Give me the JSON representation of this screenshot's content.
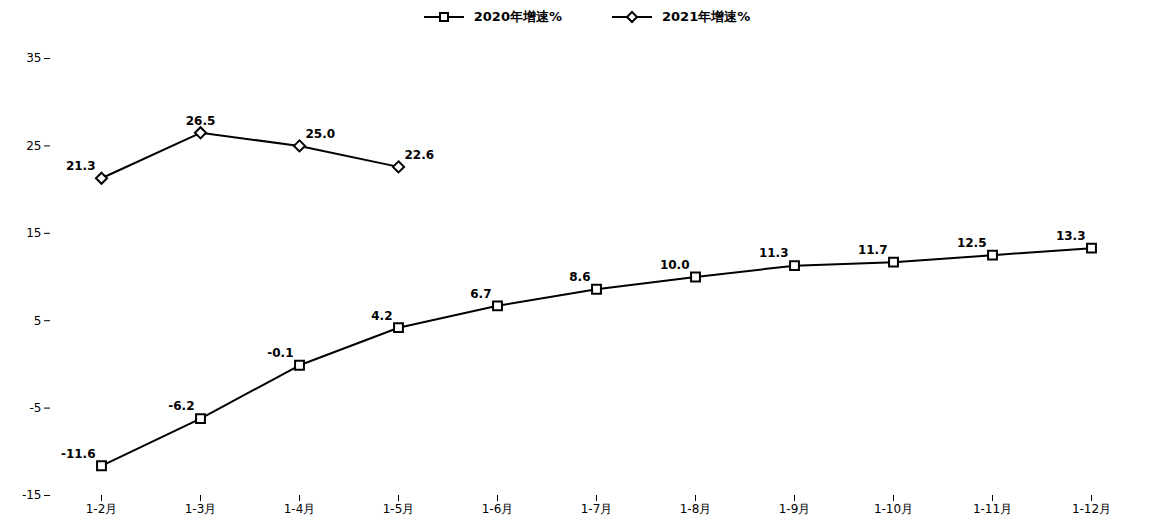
{
  "chart_data": {
    "type": "line",
    "categories": [
      "1-2月",
      "1-3月",
      "1-4月",
      "1-5月",
      "1-6月",
      "1-7月",
      "1-8月",
      "1-9月",
      "1-10月",
      "1-11月",
      "1-12月"
    ],
    "series": [
      {
        "name": "2020年增速%",
        "color": "#000000",
        "marker": "square",
        "values": [
          -11.6,
          -6.2,
          -0.1,
          4.2,
          6.7,
          8.6,
          10.0,
          11.3,
          11.7,
          12.5,
          13.3
        ],
        "value_labels": [
          "-11.6",
          "-6.2",
          "-0.1",
          "4.2",
          "6.7",
          "8.6",
          "10.0",
          "11.3",
          "11.7",
          "12.5",
          "13.3"
        ]
      },
      {
        "name": "2021年增速%",
        "color": "#000000",
        "marker": "diamond",
        "values": [
          21.3,
          26.5,
          25.0,
          22.6,
          null,
          null,
          null,
          null,
          null,
          null,
          null
        ],
        "value_labels": [
          "21.3",
          "26.5",
          "25.0",
          "22.6",
          null,
          null,
          null,
          null,
          null,
          null,
          null
        ]
      }
    ],
    "ylim": [
      -15,
      35
    ],
    "yticks": [
      -15,
      -5,
      5,
      15,
      25,
      35
    ],
    "data_labels": true,
    "legend": "top",
    "grid": false
  }
}
